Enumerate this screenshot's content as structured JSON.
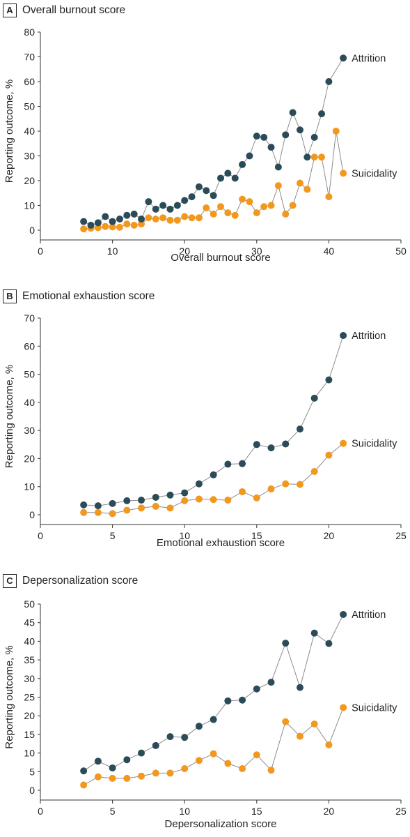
{
  "colors": {
    "attrition": "#2a4b57",
    "suicidality": "#f2981e",
    "line": "#8c8c8c",
    "axis": "#333333"
  },
  "chart_data": [
    {
      "panel": "A",
      "title": "Overall burnout score",
      "type": "line",
      "xlabel": "Overall burnout score",
      "ylabel": "Reporting outcome, %",
      "xlim": [
        0,
        50
      ],
      "ylim": [
        0,
        80
      ],
      "xticks": [
        0,
        10,
        20,
        30,
        40,
        50
      ],
      "yticks": [
        0,
        10,
        20,
        30,
        40,
        50,
        60,
        70,
        80
      ],
      "x": [
        6,
        7,
        8,
        9,
        10,
        11,
        12,
        13,
        14,
        15,
        16,
        17,
        18,
        19,
        20,
        21,
        22,
        23,
        24,
        25,
        26,
        27,
        28,
        29,
        30,
        31,
        32,
        33,
        34,
        35,
        36,
        37,
        38,
        39,
        40,
        41,
        42
      ],
      "series": [
        {
          "name": "Attrition",
          "key": "attrition",
          "values": [
            3.5,
            2,
            3,
            5.5,
            3.5,
            4.5,
            6,
            6.5,
            4.5,
            11.5,
            8.5,
            10,
            8.5,
            10,
            12,
            13.5,
            17.5,
            16,
            14,
            21,
            23,
            21,
            26.5,
            30,
            38,
            37.5,
            33.5,
            25.5,
            38.5,
            47.5,
            40.5,
            29.5,
            37.5,
            47,
            60,
            null,
            69.5
          ]
        },
        {
          "name": "Suicidality",
          "key": "suicidality",
          "values": [
            0.5,
            0.8,
            1,
            1.5,
            1.3,
            1.2,
            2.5,
            2,
            2.5,
            5,
            4.5,
            5,
            4,
            4,
            5.5,
            5,
            5,
            9,
            6.5,
            9.5,
            7,
            6,
            12.5,
            11.5,
            7,
            9.5,
            10,
            18,
            6.5,
            10,
            19,
            16.5,
            29.5,
            29.5,
            13.5,
            40,
            23
          ]
        }
      ]
    },
    {
      "panel": "B",
      "title": "Emotional exhaustion score",
      "type": "line",
      "xlabel": "Emotional exhaustion score",
      "ylabel": "Reporting outcome, %",
      "xlim": [
        0,
        25
      ],
      "ylim": [
        0,
        70
      ],
      "xticks": [
        0,
        5,
        10,
        15,
        20,
        25
      ],
      "yticks": [
        0,
        10,
        20,
        30,
        40,
        50,
        60,
        70
      ],
      "x": [
        3,
        4,
        5,
        6,
        7,
        8,
        9,
        10,
        11,
        12,
        13,
        14,
        15,
        16,
        17,
        18,
        19,
        20,
        21
      ],
      "series": [
        {
          "name": "Attrition",
          "key": "attrition",
          "values": [
            3.5,
            3.2,
            4,
            5,
            5.2,
            6.2,
            7,
            7.8,
            11,
            14.2,
            18,
            18.2,
            25,
            23.8,
            25.2,
            30.5,
            41.5,
            48,
            63.8
          ]
        },
        {
          "name": "Suicidality",
          "key": "suicidality",
          "values": [
            0.8,
            0.8,
            0.4,
            1.6,
            2.4,
            3,
            2.4,
            5,
            5.6,
            5.4,
            5.2,
            8.2,
            6,
            9.2,
            11,
            10.8,
            15.4,
            21.2,
            25.4
          ]
        }
      ]
    },
    {
      "panel": "C",
      "title": "Depersonalization score",
      "type": "line",
      "xlabel": "Depersonalization score",
      "ylabel": "Reporting outcome, %",
      "xlim": [
        0,
        25
      ],
      "ylim": [
        0,
        50
      ],
      "xticks": [
        0,
        5,
        10,
        15,
        20,
        25
      ],
      "yticks": [
        0,
        5,
        10,
        15,
        20,
        25,
        30,
        35,
        40,
        45,
        50
      ],
      "x": [
        3,
        4,
        5,
        6,
        7,
        8,
        9,
        10,
        11,
        12,
        13,
        14,
        15,
        16,
        17,
        18,
        19,
        20,
        21
      ],
      "series": [
        {
          "name": "Attrition",
          "key": "attrition",
          "values": [
            5.2,
            7.8,
            6,
            8.2,
            10,
            12,
            14.4,
            14.2,
            17.2,
            19,
            24,
            24.2,
            27.2,
            29,
            39.5,
            27.6,
            42.2,
            39.4,
            47.2
          ]
        },
        {
          "name": "Suicidality",
          "key": "suicidality",
          "values": [
            1.4,
            3.6,
            3.2,
            3.2,
            3.8,
            4.6,
            4.6,
            5.8,
            8,
            9.8,
            7.2,
            5.8,
            9.5,
            5.4,
            18.4,
            14.5,
            17.8,
            12.2,
            22.2
          ]
        }
      ]
    }
  ]
}
